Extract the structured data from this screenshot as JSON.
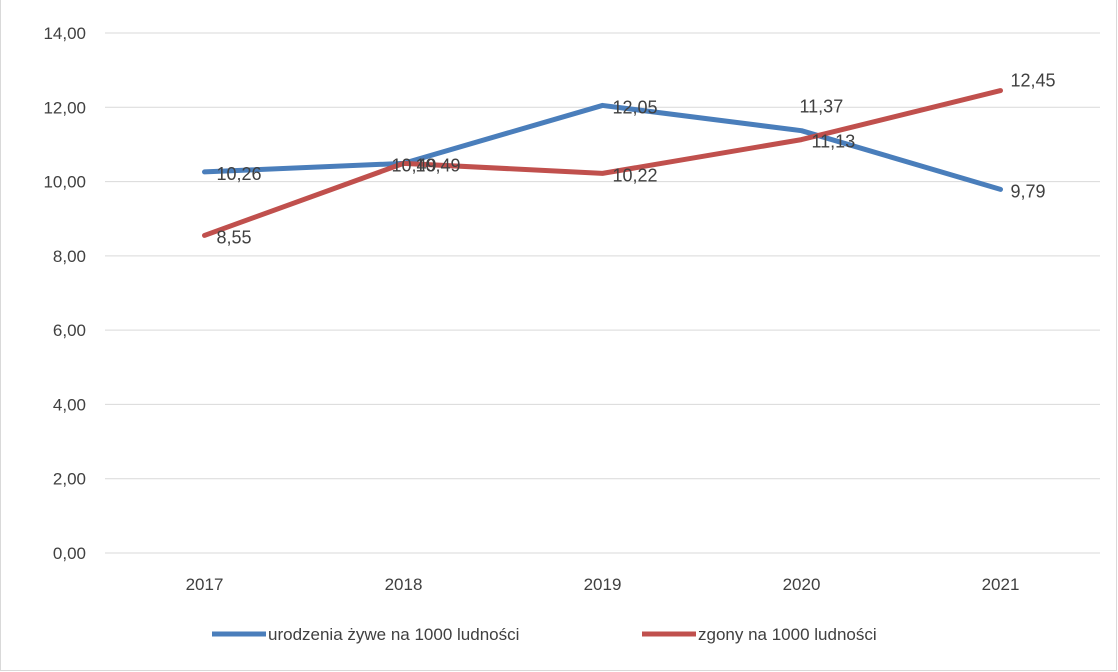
{
  "chart_data": {
    "type": "line",
    "title": "",
    "xlabel": "",
    "ylabel": "",
    "categories": [
      "2017",
      "2018",
      "2019",
      "2020",
      "2021"
    ],
    "ylim": [
      0,
      14
    ],
    "yticks": [
      "0,00",
      "2,00",
      "4,00",
      "6,00",
      "8,00",
      "10,00",
      "12,00",
      "14,00"
    ],
    "grid": true,
    "legend_position": "bottom",
    "series": [
      {
        "name": "urodzenia żywe na 1000 ludności",
        "color": "#4a7ebb",
        "values": [
          10.26,
          10.49,
          12.05,
          11.37,
          9.79
        ],
        "labels": [
          "10,26",
          "10,49",
          "12,05",
          "11,37",
          "9,79"
        ]
      },
      {
        "name": "zgony na 1000 ludności",
        "color": "#c0504d",
        "values": [
          8.55,
          10.49,
          10.22,
          11.13,
          12.45
        ],
        "labels": [
          "8,55",
          "10,49",
          "10,22",
          "11,13",
          "12,45"
        ]
      }
    ]
  }
}
